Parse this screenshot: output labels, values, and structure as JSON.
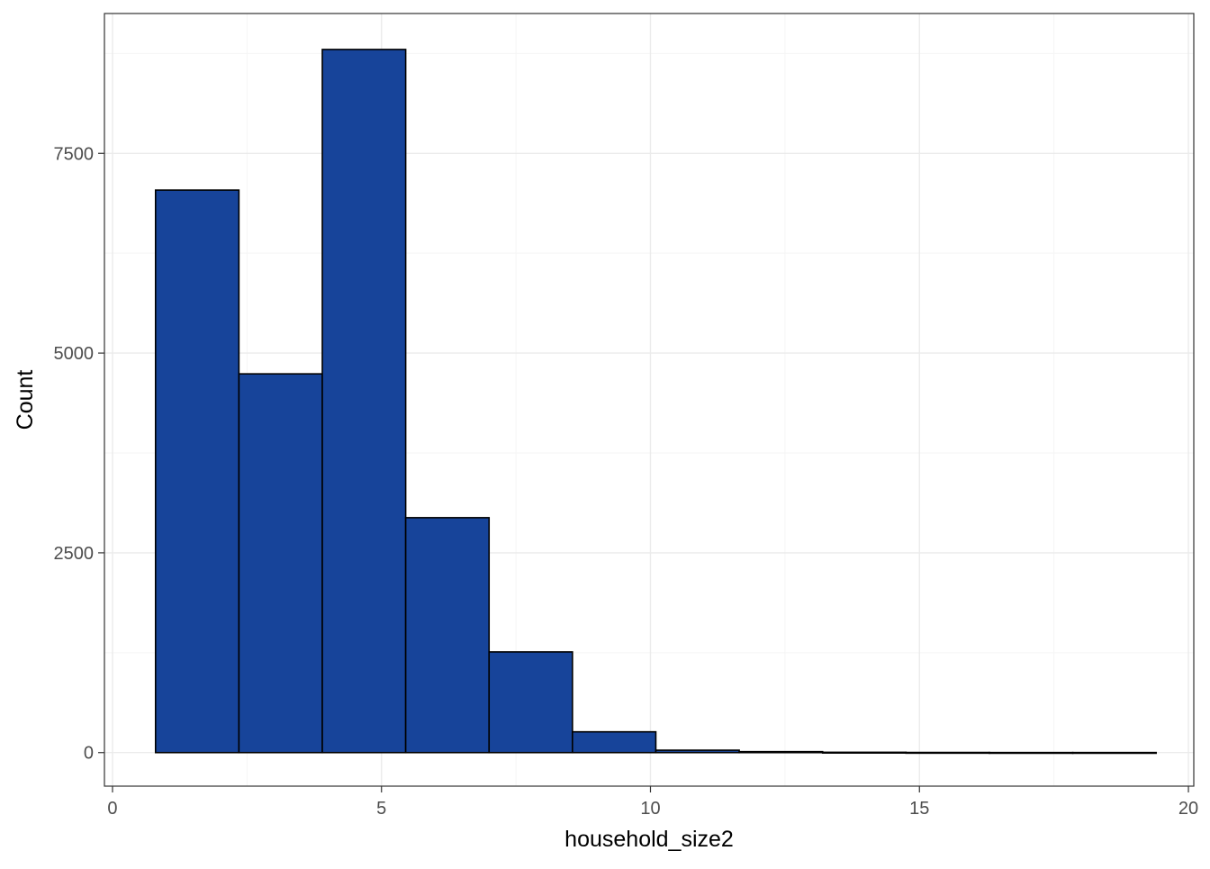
{
  "chart_data": {
    "type": "bar",
    "subtype": "histogram",
    "title": "",
    "xlabel": "household_size2",
    "ylabel": "Count",
    "xlim": [
      -0.15,
      20.1
    ],
    "ylim": [
      -420,
      9250
    ],
    "x_ticks": [
      0,
      5,
      10,
      15,
      20
    ],
    "y_ticks": [
      0,
      2500,
      5000,
      7500
    ],
    "x_tick_labels": [
      "0",
      "5",
      "10",
      "15",
      "20"
    ],
    "y_tick_labels": [
      "0",
      "2500",
      "5000",
      "7500"
    ],
    "grid": true,
    "legend": "none",
    "bins": [
      {
        "x0": 0.8,
        "x1": 2.35,
        "count": 7040
      },
      {
        "x0": 2.35,
        "x1": 3.9,
        "count": 4740
      },
      {
        "x0": 3.9,
        "x1": 5.45,
        "count": 8800
      },
      {
        "x0": 5.45,
        "x1": 7.0,
        "count": 2940
      },
      {
        "x0": 7.0,
        "x1": 8.55,
        "count": 1260
      },
      {
        "x0": 8.55,
        "x1": 10.1,
        "count": 260
      },
      {
        "x0": 10.1,
        "x1": 11.65,
        "count": 30
      },
      {
        "x0": 11.65,
        "x1": 13.2,
        "count": 12
      },
      {
        "x0": 13.2,
        "x1": 14.75,
        "count": 4
      },
      {
        "x0": 14.75,
        "x1": 16.3,
        "count": 2
      },
      {
        "x0": 16.3,
        "x1": 17.85,
        "count": 1
      },
      {
        "x0": 17.85,
        "x1": 19.4,
        "count": 1
      }
    ],
    "colors": {
      "bar_fill": "#17449A",
      "bar_outline": "#000000",
      "grid_major": "#EBEBEB",
      "grid_minor": "#F5F5F5",
      "panel_border": "#333333",
      "tick_text": "#4D4D4D",
      "axis_title_text": "#000000"
    }
  }
}
